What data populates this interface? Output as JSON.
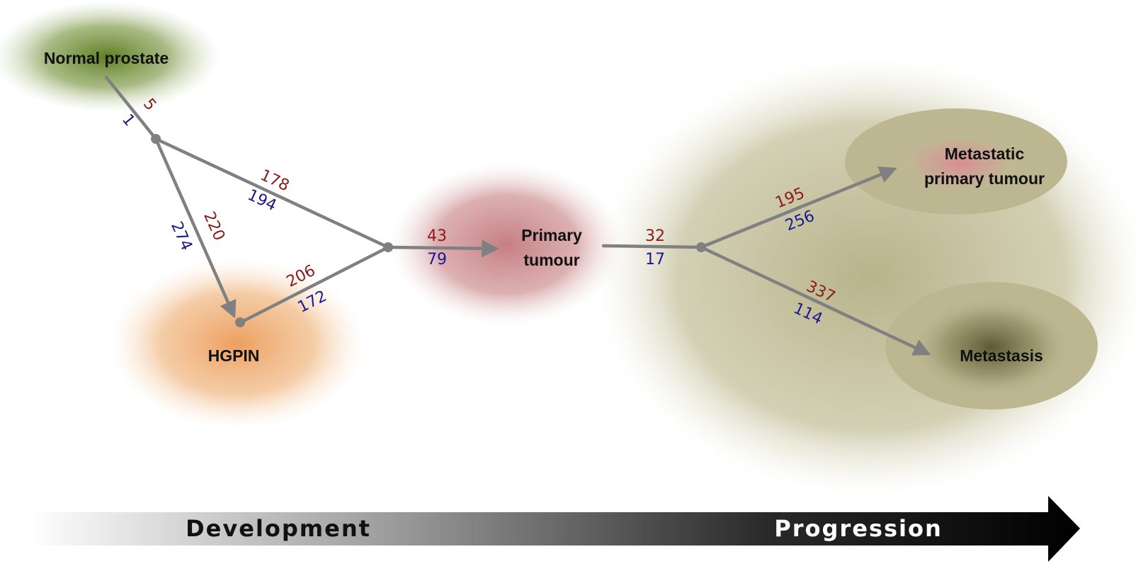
{
  "nodes": {
    "normal": "Normal prostate",
    "hgpin": "HGPIN",
    "primary": [
      "Primary",
      "tumour"
    ],
    "metastatic_primary": [
      "Metastatic",
      "primary tumour"
    ],
    "metastasis": "Metastasis"
  },
  "edges": {
    "normal_branch": {
      "up": "5",
      "down": "1"
    },
    "to_hgpin": {
      "up": "220",
      "down": "274"
    },
    "branch_to_junction": {
      "up": "178",
      "down": "194"
    },
    "hgpin_to_junction": {
      "up": "206",
      "down": "172"
    },
    "to_primary": {
      "up": "43",
      "down": "79"
    },
    "from_primary": {
      "up": "32",
      "down": "17"
    },
    "to_metastatic_primary": {
      "up": "195",
      "down": "256"
    },
    "to_metastasis": {
      "up": "337",
      "down": "114"
    }
  },
  "timeline": {
    "development": "Development",
    "progression": "Progression"
  },
  "colors": {
    "edge": "#808080",
    "up_number": "#8b1a1a",
    "down_number": "#1a1a8f",
    "normal_blob": "#6b8a2e",
    "hgpin_blob": "#eea867",
    "primary_blob": "#c9878a",
    "progression_blob": "#b8b28a"
  }
}
